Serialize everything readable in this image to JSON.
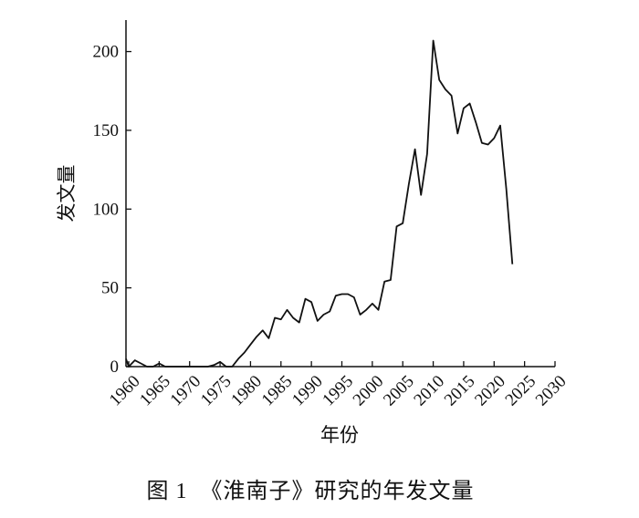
{
  "chart_data": {
    "type": "line",
    "xlabel": "年份",
    "ylabel": "发文量",
    "xlim": [
      1960,
      2030
    ],
    "ylim": [
      0,
      220
    ],
    "x_ticks": [
      1960,
      1965,
      1970,
      1975,
      1980,
      1985,
      1990,
      1995,
      2000,
      2005,
      2010,
      2015,
      2020,
      2025,
      2030
    ],
    "y_ticks": [
      0,
      50,
      100,
      150,
      200
    ],
    "grid": false,
    "series": [
      {
        "x": [
          1959,
          1960,
          1961,
          1962,
          1963,
          1964,
          1965,
          1966,
          1967,
          1968,
          1969,
          1970,
          1971,
          1972,
          1973,
          1974,
          1975,
          1976,
          1977,
          1978,
          1979,
          1980,
          1981,
          1982,
          1983,
          1984,
          1985,
          1986,
          1987,
          1988,
          1989,
          1990,
          1991,
          1992,
          1993,
          1994,
          1995,
          1996,
          1997,
          1998,
          1999,
          2000,
          2001,
          2002,
          2003,
          2004,
          2005,
          2006,
          2007,
          2008,
          2009,
          2010,
          2011,
          2012,
          2013,
          2014,
          2015,
          2016,
          2017,
          2018,
          2019,
          2020,
          2021,
          2022,
          2023
        ],
        "values": [
          5,
          0,
          4,
          2,
          0,
          0,
          2,
          0,
          0,
          0,
          0,
          0,
          0,
          0,
          0,
          1,
          3,
          0,
          0,
          5,
          9,
          14,
          19,
          23,
          18,
          31,
          30,
          36,
          31,
          28,
          43,
          41,
          29,
          33,
          35,
          45,
          46,
          46,
          44,
          33,
          36,
          40,
          36,
          54,
          55,
          89,
          91,
          116,
          138,
          109,
          135,
          207,
          182,
          176,
          172,
          148,
          164,
          167,
          155,
          142,
          141,
          145,
          153,
          113,
          65
        ]
      }
    ]
  },
  "caption": "图 1  《淮南子》研究的年发文量"
}
